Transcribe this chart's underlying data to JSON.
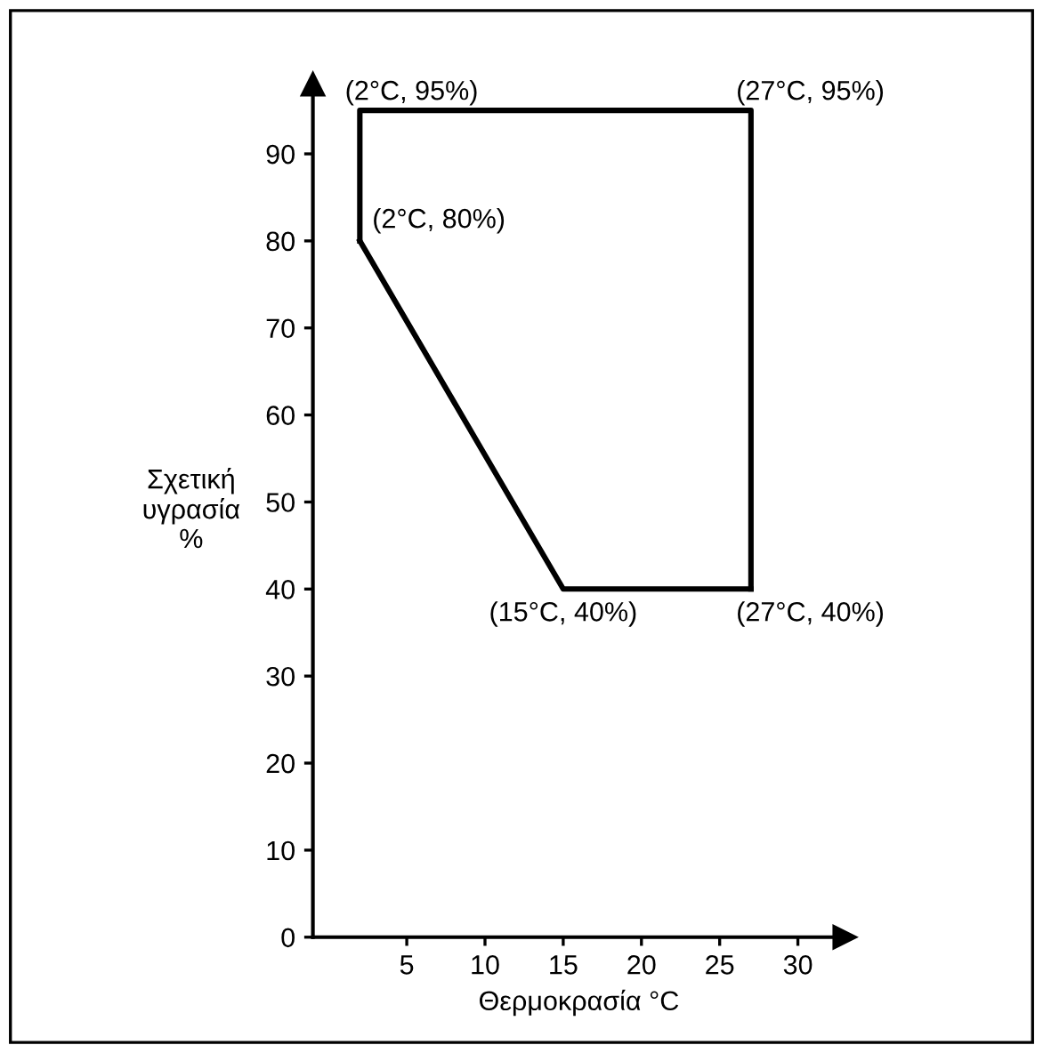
{
  "chart_data": {
    "type": "line",
    "xlabel": "Θερμοκρασία °C",
    "ylabel": "Σχετική\nυγρασία\n%",
    "series": [
      {
        "color": "#000000",
        "x": [
          2,
          2,
          27,
          27
        ],
        "values": [
          80,
          95,
          95,
          40
        ]
      },
      {
        "color": "#000000",
        "x": [
          2,
          15,
          27
        ],
        "values": [
          80,
          40,
          40
        ]
      }
    ],
    "xlim": [
      -1,
      33
    ],
    "ylim": [
      0,
      98
    ],
    "xticks": [
      5,
      10,
      15,
      20,
      25,
      30
    ],
    "yticks": [
      0,
      10,
      20,
      30,
      40,
      50,
      60,
      70,
      80,
      90
    ],
    "grid": false,
    "legend": false,
    "marker": "none",
    "line_style": "solid",
    "annotations": [
      {
        "text": "(2°C, 95%)",
        "x": 2,
        "y": 95
      },
      {
        "text": "(27°C, 95%)",
        "x": 27,
        "y": 95
      },
      {
        "text": "(2°C, 80%)",
        "x": 2,
        "y": 80
      },
      {
        "text": "(15°C, 40%)",
        "x": 15,
        "y": 40
      },
      {
        "text": "(27°C, 40%)",
        "x": 27,
        "y": 40
      }
    ]
  }
}
